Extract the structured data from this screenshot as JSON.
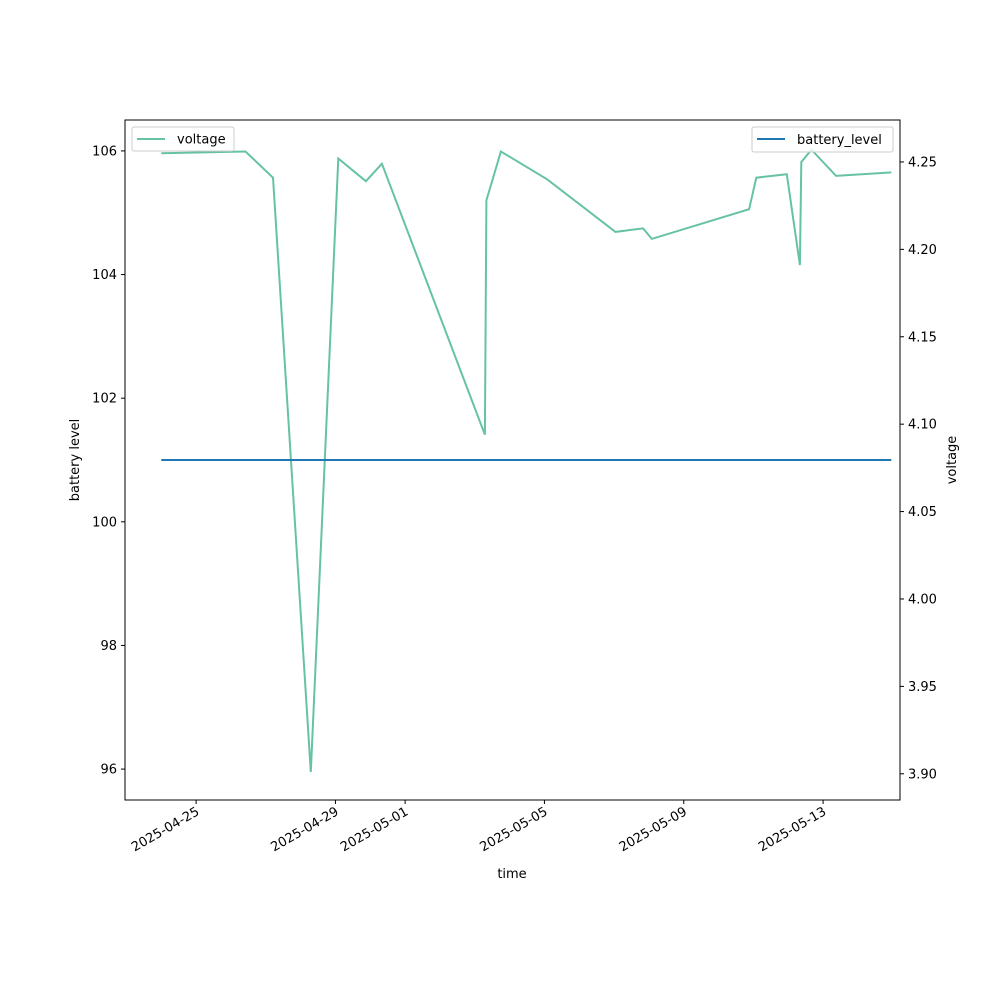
{
  "chart_data": {
    "type": "line",
    "xlabel": "time",
    "ylabel_left": "battery level",
    "ylabel_right": "voltage",
    "x_ticks": [
      "2025-04-25",
      "2025-04-29",
      "2025-05-01",
      "2025-05-05",
      "2025-05-09",
      "2025-05-13"
    ],
    "y_left_ticks": [
      "96",
      "98",
      "100",
      "102",
      "104",
      "106"
    ],
    "y_right_ticks": [
      "3.90",
      "3.95",
      "4.00",
      "4.05",
      "4.10",
      "4.15",
      "4.20",
      "4.25"
    ],
    "xlim": [
      "2025-04-22T23:00",
      "2025-05-15T05:00"
    ],
    "ylim_left": [
      95.5,
      106.5
    ],
    "ylim_right": [
      3.885,
      4.274
    ],
    "grid": false,
    "legend_left": {
      "placement": "upper-left",
      "label": "voltage"
    },
    "legend_right": {
      "placement": "upper-right",
      "label": "battery_level"
    },
    "series": [
      {
        "name": "voltage",
        "axis": "right",
        "color": "#66c2a5",
        "x": [
          "2025-04-24T00:00",
          "2025-04-26T10:00",
          "2025-04-27T05:00",
          "2025-04-28T07:00",
          "2025-04-29T02:00",
          "2025-04-29T21:00",
          "2025-04-30T08:00",
          "2025-05-03T07:00",
          "2025-05-03T08:00",
          "2025-05-03T18:00",
          "2025-05-05T02:00",
          "2025-05-07T01:00",
          "2025-05-07T20:00",
          "2025-05-08T02:00",
          "2025-05-10T21:00",
          "2025-05-11T02:00",
          "2025-05-11T23:00",
          "2025-05-12T08:00",
          "2025-05-12T09:00",
          "2025-05-12T16:00",
          "2025-05-13T09:00",
          "2025-05-14T23:00"
        ],
        "y": [
          4.255,
          4.256,
          4.241,
          3.901,
          4.252,
          4.239,
          4.249,
          4.094,
          4.228,
          4.256,
          4.24,
          4.21,
          4.212,
          4.206,
          4.223,
          4.241,
          4.243,
          4.191,
          4.25,
          4.257,
          4.242,
          4.244
        ]
      },
      {
        "name": "battery_level",
        "axis": "left",
        "color": "#1f77b4",
        "x": [
          "2025-04-24T00:00",
          "2025-05-14T23:00"
        ],
        "y": [
          101,
          101
        ]
      }
    ]
  }
}
